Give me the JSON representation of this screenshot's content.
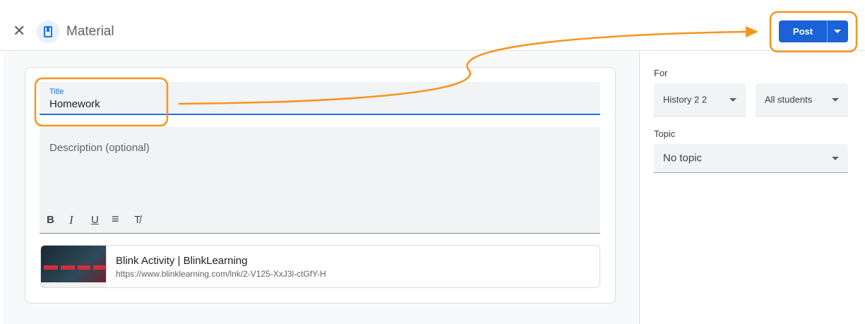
{
  "header": {
    "title": "Material",
    "close_icon": "close-icon",
    "material_icon": "bookmark-icon",
    "post_label": "Post"
  },
  "form": {
    "title_label": "Title",
    "title_value": "Homework",
    "description_placeholder": "Description (optional)",
    "toolbar": [
      "B",
      "I",
      "U",
      "≡",
      "T̸"
    ],
    "attachment": {
      "title": "Blink Activity | BlinkLearning",
      "url": "https://www.blinklearning.com/lnk/2-V125-XxJ3l-ctGfY-H"
    }
  },
  "sidebar": {
    "for_label": "For",
    "class_value": "History 2 2",
    "students_value": "All students",
    "topic_label": "Topic",
    "topic_value": "No topic"
  },
  "colors": {
    "accent": "#1a73e8",
    "annotation": "#f7941d"
  }
}
